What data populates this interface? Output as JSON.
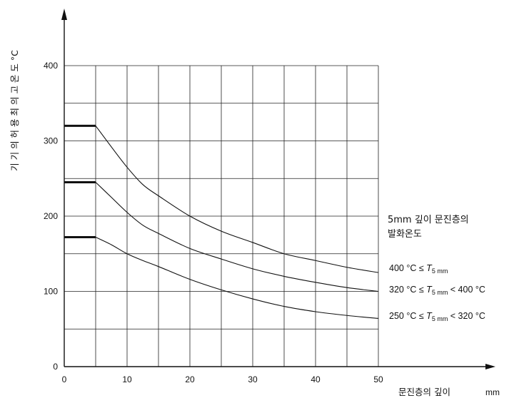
{
  "chart_data": {
    "type": "line",
    "ylabel": "기 기 의 허 용 최 의 고 온 도 °C",
    "xlabel": "문진층의 깊이",
    "xunit": "mm",
    "legend_title_line1": "5mm 깊이 문진층의",
    "legend_title_line2": "발화온도",
    "xlim": [
      0,
      50
    ],
    "ylim": [
      0,
      400
    ],
    "x_ticks": [
      "0",
      "10",
      "20",
      "30",
      "40",
      "50"
    ],
    "y_ticks": [
      "0",
      "100",
      "200",
      "300",
      "400"
    ],
    "grid": true,
    "series": [
      {
        "name_prefix": "400 °C ≤ ",
        "name_t": "T",
        "name_sub": "5 mm",
        "name_suffix": "",
        "x": [
          0,
          5,
          7.5,
          10,
          12.5,
          15,
          20,
          25,
          30,
          35,
          40,
          45,
          50
        ],
        "y": [
          320,
          320,
          292,
          265,
          242,
          227,
          200,
          180,
          165,
          150,
          141,
          132,
          125
        ]
      },
      {
        "name_prefix": "320 °C ≤ ",
        "name_t": "T",
        "name_sub": "5 mm",
        "name_suffix": " < 400 °C",
        "x": [
          0,
          5,
          7.5,
          10,
          12.5,
          15,
          20,
          25,
          30,
          35,
          40,
          45,
          50
        ],
        "y": [
          245,
          245,
          225,
          205,
          188,
          177,
          157,
          143,
          130,
          120,
          112,
          105,
          100
        ]
      },
      {
        "name_prefix": "250 °C ≤ ",
        "name_t": "T",
        "name_sub": "5 mm",
        "name_suffix": " < 320 °C",
        "x": [
          0,
          5,
          7.5,
          10,
          12.5,
          15,
          20,
          25,
          30,
          35,
          40,
          45,
          50
        ],
        "y": [
          172,
          172,
          162,
          150,
          141,
          133,
          116,
          102,
          90,
          80,
          73,
          68,
          64
        ]
      }
    ]
  }
}
